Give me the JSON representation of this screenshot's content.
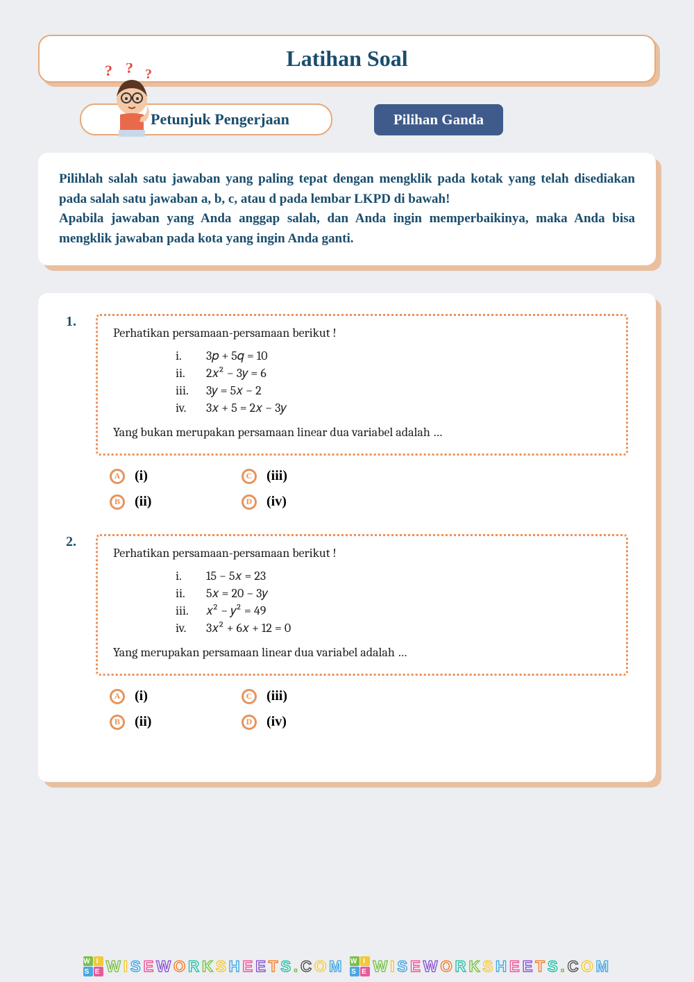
{
  "colors": {
    "page_bg": "#eceef1",
    "accent_border": "#e8a878",
    "shadow": "#e8c0a0",
    "heading": "#1a4d6d",
    "badge_bg": "#3f5b8c",
    "dotted": "#e8935a",
    "qmark": "#e04a3a"
  },
  "title": "Latihan Soal",
  "instructions_label": "Petunjuk Pengerjaan",
  "badge": "Pilihan Ganda",
  "mascot": {
    "qmarks": [
      "?",
      "?",
      "?"
    ]
  },
  "instructions_text": "Pilihlah salah satu jawaban yang paling tepat dengan mengklik pada kotak yang telah disediakan pada salah satu jawaban a, b, c, atau d pada lembar LKPD di bawah!\nApabila jawaban yang Anda anggap salah, dan Anda ingin memperbaikinya, maka Anda bisa mengklik jawaban pada kota yang ingin Anda ganti.",
  "questions": [
    {
      "num": "1.",
      "lead": "Perhatikan persamaan-persamaan berikut !",
      "equations": [
        {
          "roman": "i.",
          "expr": "3𝑝 + 5𝑞 = 10"
        },
        {
          "roman": "ii.",
          "expr": "2𝑥² − 3𝑦 = 6"
        },
        {
          "roman": "iii.",
          "expr": "3𝑦 = 5𝑥 − 2"
        },
        {
          "roman": "iv.",
          "expr": "3𝑥 + 5 = 2𝑥 − 3𝑦"
        }
      ],
      "tail": "Yang bukan merupakan persamaan linear dua variabel adalah …",
      "options": [
        {
          "letter": "A",
          "label": "(i)"
        },
        {
          "letter": "C",
          "label": "(iii)"
        },
        {
          "letter": "B",
          "label": "(ii)"
        },
        {
          "letter": "D",
          "label": "(iv)"
        }
      ]
    },
    {
      "num": "2.",
      "lead": "Perhatikan persamaan-persamaan berikut !",
      "equations": [
        {
          "roman": "i.",
          "expr": "15 − 5𝑥 = 23"
        },
        {
          "roman": "ii.",
          "expr": "5𝑥 = 20 − 3𝑦"
        },
        {
          "roman": "iii.",
          "expr": "𝑥² − 𝑦² = 49"
        },
        {
          "roman": "iv.",
          "expr": "3𝑥² + 6𝑥 + 12 = 0"
        }
      ],
      "tail": "Yang merupakan persamaan linear dua variabel adalah …",
      "options": [
        {
          "letter": "A",
          "label": "(i)"
        },
        {
          "letter": "C",
          "label": "(iii)"
        },
        {
          "letter": "B",
          "label": "(ii)"
        },
        {
          "letter": "D",
          "label": "(iv)"
        }
      ]
    }
  ],
  "watermark": {
    "text": "WISEWORKSHEETS.COM",
    "square_letters": [
      "W",
      "I",
      "S",
      "E"
    ],
    "palette": [
      "#7cc04a",
      "#f2c838",
      "#4aa8e0",
      "#e85a9a",
      "#8a5ad0",
      "#f08030",
      "#30c0a8"
    ],
    "letter_colors": [
      "#7cc04a",
      "#f2c838",
      "#4aa8e0",
      "#e85a9a",
      "#8a5ad0",
      "#f08030",
      "#30c0a8",
      "#7cc04a",
      "#f2c838",
      "#4aa8e0",
      "#e85a9a",
      "#8a5ad0",
      "#f08030",
      "#30c0a8",
      "#7cc04a",
      "#555",
      "#f2c838",
      "#4aa8e0",
      "#e85a9a"
    ]
  }
}
